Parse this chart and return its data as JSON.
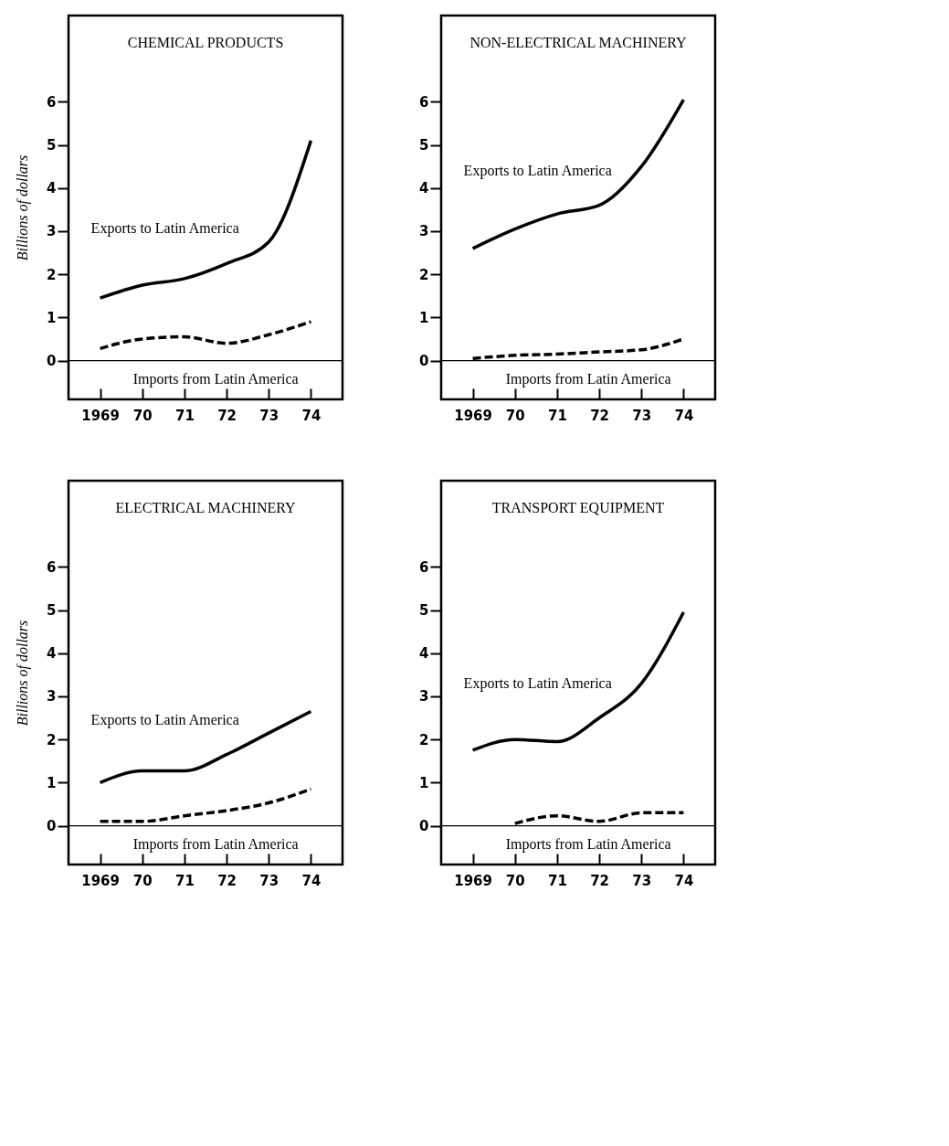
{
  "chart_data": [
    {
      "type": "line",
      "title": "CHEMICAL PRODUCTS",
      "ylabel": "Billions of dollars",
      "categories": [
        "1969",
        "70",
        "71",
        "72",
        "73",
        "74"
      ],
      "ylim": [
        -0.9,
        8
      ],
      "yticks": [
        0,
        1,
        2,
        3,
        4,
        5,
        6
      ],
      "ref_lines": [
        {
          "axis": "y",
          "value": 0,
          "color": "#000000"
        }
      ],
      "series": [
        {
          "name": "Exports to Latin America",
          "color": "#000000",
          "line_style": "solid",
          "values": [
            1.45,
            1.75,
            1.9,
            2.25,
            2.75,
            5.1
          ]
        },
        {
          "name": "Imports from Latin America",
          "color": "#000000",
          "line_style": "dashed",
          "values": [
            0.28,
            0.5,
            0.55,
            0.4,
            0.6,
            0.9
          ]
        }
      ]
    },
    {
      "type": "line",
      "title": "NON-ELECTRICAL MACHINERY",
      "categories": [
        "1969",
        "70",
        "71",
        "72",
        "73",
        "74"
      ],
      "ylim": [
        -0.9,
        8
      ],
      "yticks": [
        0,
        1,
        2,
        3,
        4,
        5,
        6
      ],
      "ref_lines": [
        {
          "axis": "y",
          "value": 0,
          "color": "#000000"
        }
      ],
      "series": [
        {
          "name": "Exports to Latin America",
          "color": "#000000",
          "line_style": "solid",
          "values": [
            2.6,
            3.05,
            3.4,
            3.6,
            4.5,
            6.05
          ]
        },
        {
          "name": "Imports from Latin America",
          "color": "#000000",
          "line_style": "dashed",
          "values": [
            0.05,
            0.12,
            0.15,
            0.2,
            0.25,
            0.5
          ]
        }
      ]
    },
    {
      "type": "line",
      "title": "ELECTRICAL MACHINERY",
      "ylabel": "Billions of dollars",
      "categories": [
        "1969",
        "70",
        "71",
        "72",
        "73",
        "74"
      ],
      "ylim": [
        -0.9,
        8
      ],
      "yticks": [
        0,
        1,
        2,
        3,
        4,
        5,
        6
      ],
      "ref_lines": [
        {
          "axis": "y",
          "value": 0,
          "color": "#000000"
        }
      ],
      "series": [
        {
          "name": "Exports to Latin America",
          "color": "#000000",
          "line_style": "solid",
          "values": [
            1.0,
            1.27,
            1.27,
            1.65,
            2.15,
            2.65
          ]
        },
        {
          "name": "Imports from Latin America",
          "color": "#000000",
          "line_style": "dashed",
          "values": [
            0.1,
            0.1,
            0.23,
            0.35,
            0.53,
            0.85
          ]
        }
      ]
    },
    {
      "type": "line",
      "title": "TRANSPORT EQUIPMENT",
      "categories": [
        "1969",
        "70",
        "71",
        "72",
        "73",
        "74"
      ],
      "ylim": [
        -0.9,
        8
      ],
      "yticks": [
        0,
        1,
        2,
        3,
        4,
        5,
        6
      ],
      "ref_lines": [
        {
          "axis": "y",
          "value": 0,
          "color": "#000000"
        }
      ],
      "series": [
        {
          "name": "Exports to Latin America",
          "color": "#000000",
          "line_style": "solid",
          "values": [
            1.75,
            2.0,
            1.95,
            2.5,
            3.3,
            4.95
          ]
        },
        {
          "name": "Imports from Latin America",
          "color": "#000000",
          "line_style": "dashed",
          "values": [
            null,
            0.05,
            0.23,
            0.1,
            0.3,
            0.3
          ]
        }
      ]
    }
  ]
}
